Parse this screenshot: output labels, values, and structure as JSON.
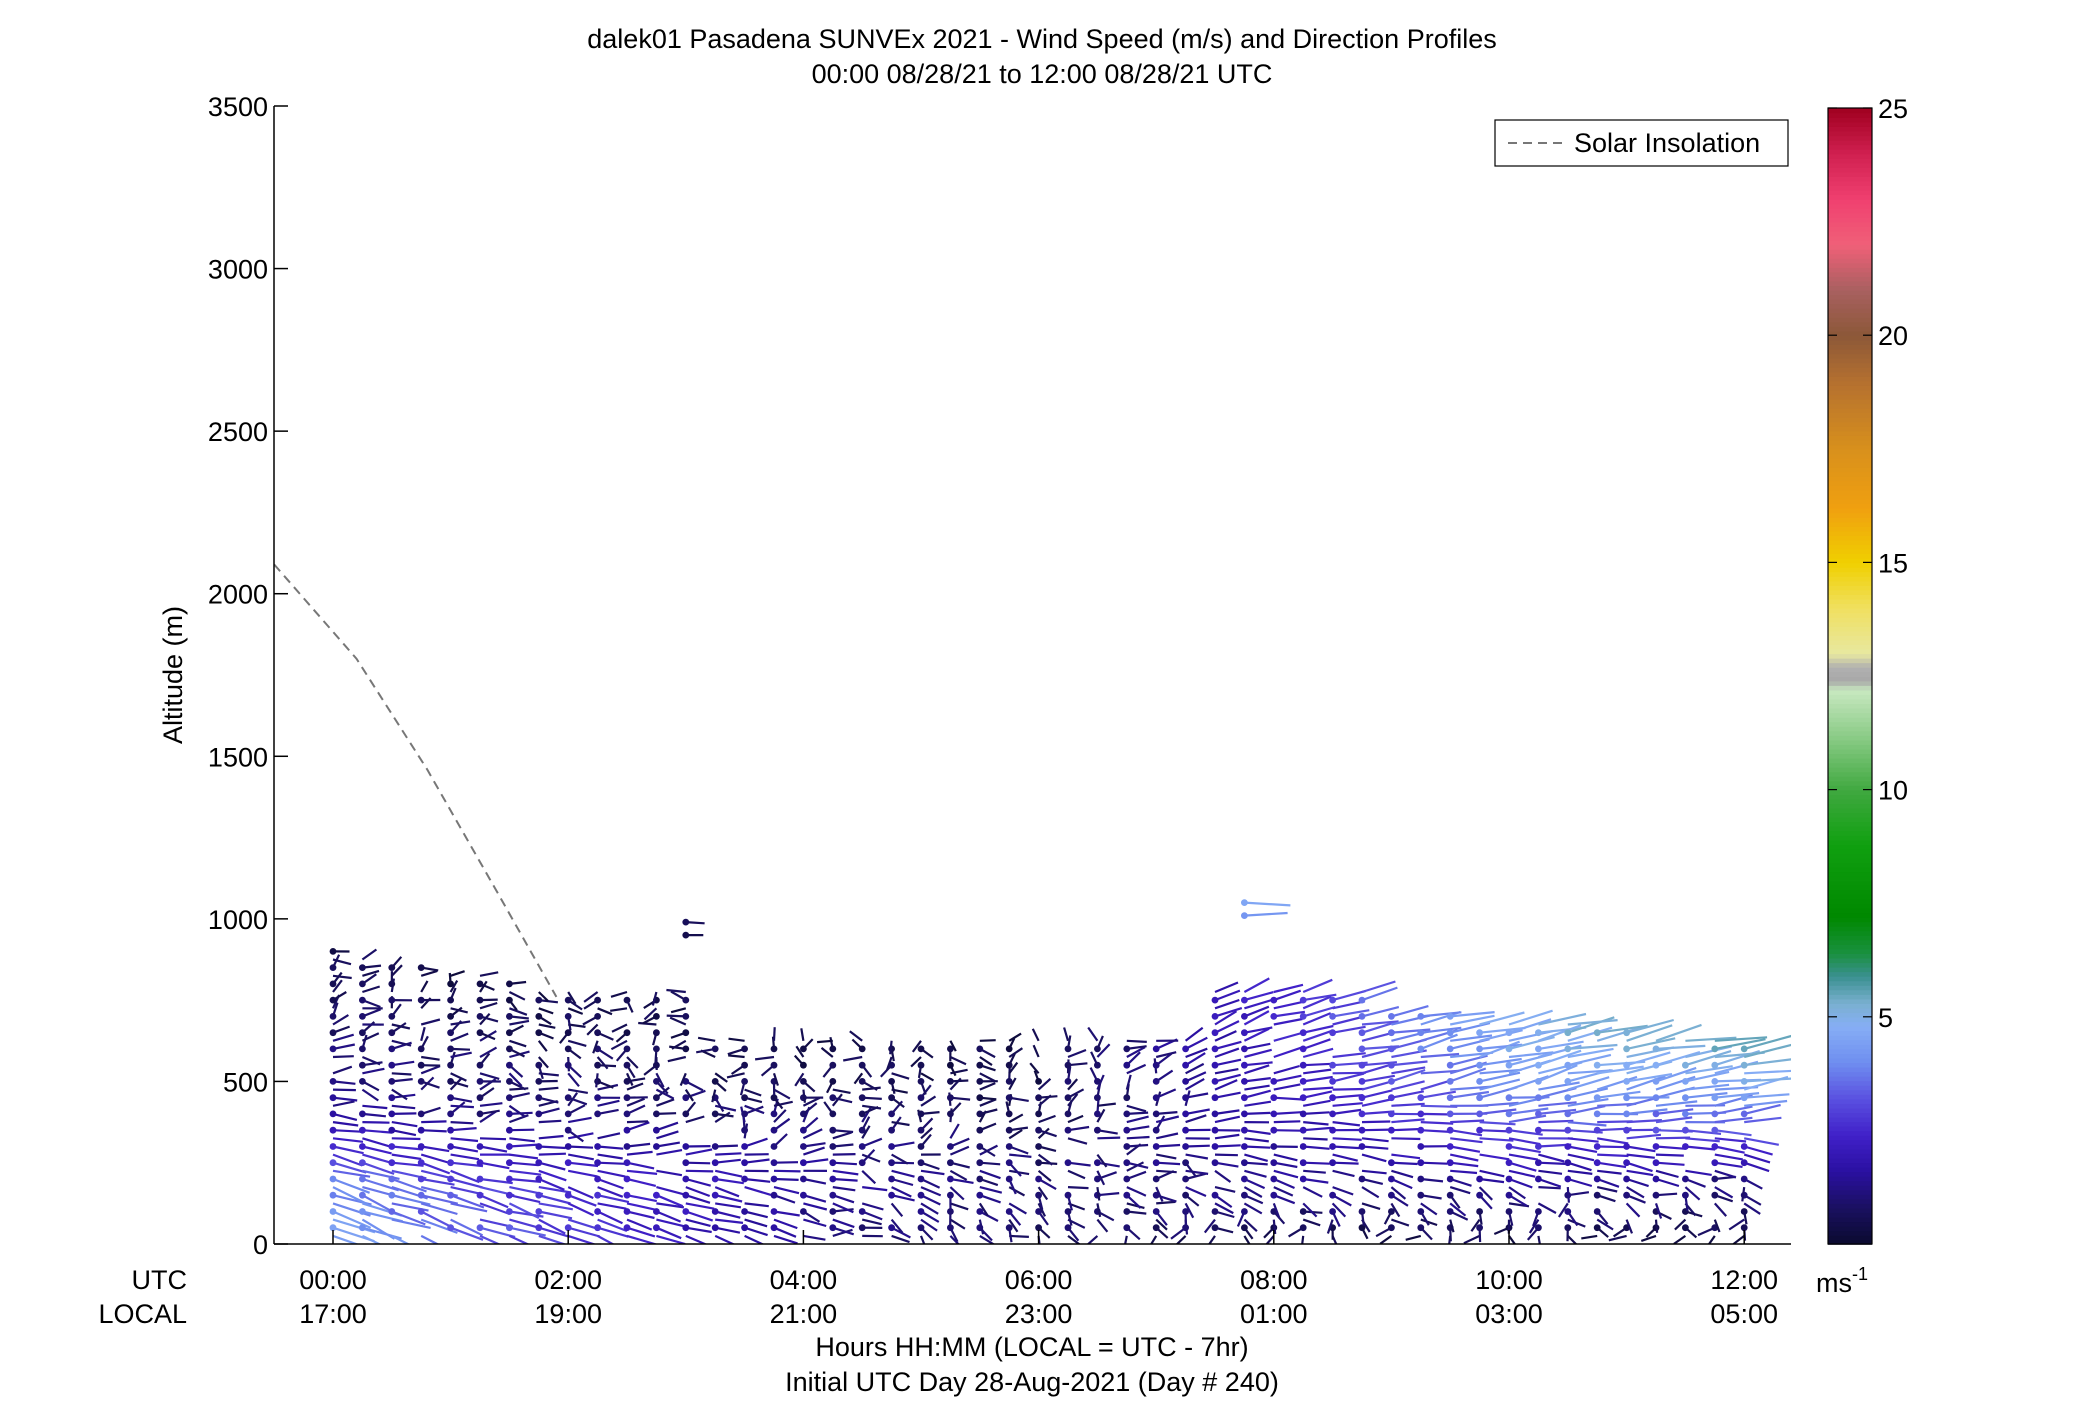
{
  "chart_data": {
    "type": "vector-field",
    "title": "dalek01 Pasadena SUNVEx 2021 - Wind Speed (m/s) and Direction Profiles",
    "subtitle": "00:00 08/28/21 to 12:00 08/28/21  UTC",
    "ylabel": "Altitude (m)",
    "xlabel": "Hours HH:MM  (LOCAL = UTC - 7hr)",
    "xlabel2": "Initial UTC Day 28-Aug-2021 (Day # 240)",
    "ylim": [
      0,
      3500
    ],
    "xlim_hours": [
      -0.5,
      12.4
    ],
    "y_ticks": [
      "0",
      "500",
      "1000",
      "1500",
      "2000",
      "2500",
      "3000",
      "3500"
    ],
    "x_row_labels": {
      "utc": "UTC",
      "local": "LOCAL"
    },
    "x_ticks": [
      {
        "hour": 0,
        "utc": "00:00",
        "local": "17:00"
      },
      {
        "hour": 2,
        "utc": "02:00",
        "local": "19:00"
      },
      {
        "hour": 4,
        "utc": "04:00",
        "local": "21:00"
      },
      {
        "hour": 6,
        "utc": "06:00",
        "local": "23:00"
      },
      {
        "hour": 8,
        "utc": "08:00",
        "local": "01:00"
      },
      {
        "hour": 10,
        "utc": "10:00",
        "local": "03:00"
      },
      {
        "hour": 12,
        "utc": "12:00",
        "local": "05:00"
      }
    ],
    "legend": {
      "label": "Solar Insolation",
      "placement": "top-right",
      "line_color": "#777777"
    },
    "solar_insolation_curve": [
      [
        -0.5,
        2090
      ],
      [
        0.2,
        1800
      ],
      [
        0.8,
        1460
      ],
      [
        1.4,
        1080
      ],
      [
        1.9,
        760
      ]
    ],
    "colorbar": {
      "unit": "ms-1",
      "range": [
        0,
        25
      ],
      "ticks": [
        "5",
        "10",
        "15",
        "20",
        "25"
      ],
      "stops": [
        [
          0,
          "#0a0a2e"
        ],
        [
          0.8,
          "#1a1060"
        ],
        [
          1.6,
          "#2a10a0"
        ],
        [
          2.4,
          "#4020c8"
        ],
        [
          3.2,
          "#5a50e0"
        ],
        [
          4.0,
          "#6f8ef0"
        ],
        [
          4.8,
          "#86aef5"
        ],
        [
          5.3,
          "#7ab0d0"
        ],
        [
          5.9,
          "#3a9090"
        ],
        [
          6.4,
          "#1a9040"
        ],
        [
          7.2,
          "#008800"
        ],
        [
          8.8,
          "#10a010"
        ],
        [
          10.0,
          "#40a840"
        ],
        [
          11.2,
          "#8ccc88"
        ],
        [
          12.2,
          "#c8e8c0"
        ],
        [
          12.4,
          "#a8a8a8"
        ],
        [
          12.7,
          "#b0b0b0"
        ],
        [
          13.0,
          "#e8e8a0"
        ],
        [
          14.0,
          "#f0e060"
        ],
        [
          15.0,
          "#f0d000"
        ],
        [
          16.2,
          "#f0a010"
        ],
        [
          17.5,
          "#d8901c"
        ],
        [
          19.0,
          "#b47030"
        ],
        [
          20.0,
          "#8c5838"
        ],
        [
          21.0,
          "#a86060"
        ],
        [
          22.0,
          "#f06078"
        ],
        [
          23.0,
          "#f04070"
        ],
        [
          24.0,
          "#d02050"
        ],
        [
          25.0,
          "#a00020"
        ]
      ]
    },
    "wind_barbs": {
      "speed_units": "m/s",
      "profile_interval_hours": 0.25,
      "range_gate_m": 25,
      "max_height_m": 1050,
      "example_profiles": [
        {
          "hour": 0.0,
          "levels": [
            [
              25,
              4.5,
              240
            ],
            [
              200,
              3.8,
              245
            ],
            [
              400,
              1.5,
              260
            ],
            [
              625,
              1.0,
              290
            ],
            [
              900,
              0.6,
              300
            ]
          ]
        },
        {
          "hour": 1.0,
          "levels": [
            [
              25,
              3.6,
              240
            ],
            [
              200,
              2.9,
              250
            ],
            [
              400,
              1.1,
              270
            ],
            [
              550,
              0.9,
              300
            ],
            [
              800,
              0.5,
              310
            ]
          ]
        },
        {
          "hour": 3.0,
          "levels": [
            [
              950,
              0.5,
              270
            ],
            [
              990,
              0.7,
              265
            ]
          ]
        },
        {
          "hour": 4.0,
          "levels": [
            [
              25,
              1.2,
              250
            ],
            [
              200,
              1.6,
              255
            ],
            [
              400,
              0.9,
              330
            ],
            [
              600,
              0.5,
              10
            ]
          ]
        },
        {
          "hour": 6.0,
          "levels": [
            [
              25,
              0.8,
              200
            ],
            [
              200,
              1.0,
              240
            ],
            [
              400,
              0.6,
              320
            ],
            [
              650,
              0.4,
              350
            ]
          ]
        },
        {
          "hour": 7.75,
          "levels": [
            [
              1010,
              4.2,
              275
            ],
            [
              1050,
              4.6,
              265
            ]
          ]
        },
        {
          "hour": 8.0,
          "levels": [
            [
              25,
              0.6,
              180
            ],
            [
              200,
              1.4,
              250
            ],
            [
              500,
              2.0,
              280
            ],
            [
              700,
              2.5,
              290
            ]
          ]
        },
        {
          "hour": 10.0,
          "levels": [
            [
              25,
              0.5,
              160
            ],
            [
              200,
              1.5,
              250
            ],
            [
              500,
              4.4,
              290
            ],
            [
              700,
              5.0,
              285
            ]
          ]
        },
        {
          "hour": 12.0,
          "levels": [
            [
              25,
              0.5,
              150
            ],
            [
              200,
              1.2,
              240
            ],
            [
              400,
              3.8,
              280
            ],
            [
              600,
              5.6,
              285
            ]
          ]
        }
      ]
    }
  }
}
